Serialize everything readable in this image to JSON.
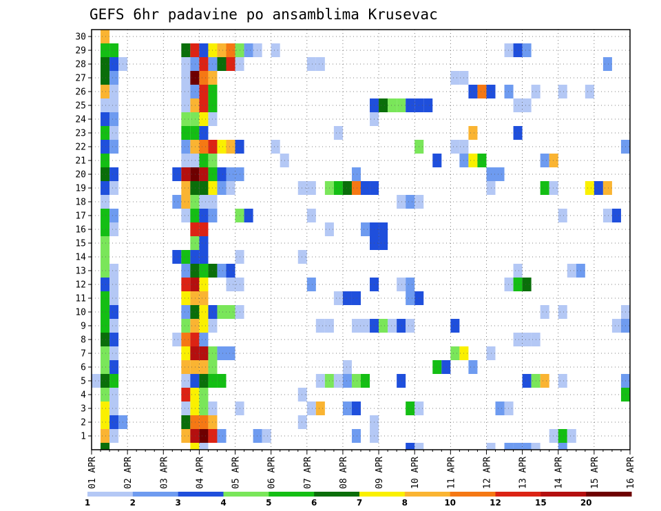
{
  "chart_data": {
    "type": "heatmap",
    "title": "GEFS 6hr padavine po ansamblima Krusevac",
    "xlabel": "",
    "ylabel": "",
    "x_tick_labels": [
      "01 APR",
      "02 APR",
      "03 APR",
      "04 APR",
      "05 APR",
      "06 APR",
      "07 APR",
      "08 APR",
      "09 APR",
      "10 APR",
      "11 APR",
      "12 APR",
      "13 APR",
      "14 APR",
      "15 APR",
      "16 APR"
    ],
    "x_steps_per_day": 4,
    "xlim": [
      0,
      60
    ],
    "y_tick_labels": [
      "1",
      "2",
      "3",
      "4",
      "5",
      "6",
      "7",
      "8",
      "9",
      "10",
      "11",
      "12",
      "13",
      "14",
      "15",
      "16",
      "17",
      "18",
      "19",
      "20",
      "21",
      "22",
      "23",
      "24",
      "25",
      "26",
      "27",
      "28",
      "29",
      "30"
    ],
    "ylim": [
      0,
      30
    ],
    "grid": true,
    "legend": {
      "placement": "bottom",
      "labels": [
        "1",
        "2",
        "3",
        "4",
        "5",
        "6",
        "7",
        "8",
        "10",
        "12",
        "15",
        "20"
      ],
      "colors": [
        "#b4c8f5",
        "#6e9bf0",
        "#1f4fdc",
        "#7ae65a",
        "#14be14",
        "#0a6e0a",
        "#faf000",
        "#fab432",
        "#f57814",
        "#dc2314",
        "#b40f0f",
        "#6e0000"
      ]
    },
    "levels": [
      1,
      2,
      3,
      4,
      5,
      6,
      7,
      8,
      10,
      12,
      15,
      20
    ],
    "colors": [
      "#b4c8f5",
      "#6e9bf0",
      "#1f4fdc",
      "#7ae65a",
      "#14be14",
      "#0a6e0a",
      "#faf000",
      "#fab432",
      "#f57814",
      "#dc2314",
      "#b40f0f",
      "#6e0000"
    ],
    "cells_note": "each cell: [member (row 0..29 = member 1..30, plus row 30 = member 0 at bottom), time step index from 01 APR 00Z in 6h steps, color class index 0-11]",
    "cells": [
      [
        29,
        1,
        7
      ],
      [
        28,
        1,
        4
      ],
      [
        28,
        2,
        4
      ],
      [
        28,
        10,
        5
      ],
      [
        28,
        11,
        9
      ],
      [
        28,
        12,
        2
      ],
      [
        28,
        13,
        6
      ],
      [
        28,
        14,
        7
      ],
      [
        28,
        15,
        8
      ],
      [
        28,
        16,
        3
      ],
      [
        28,
        17,
        1
      ],
      [
        28,
        18,
        0
      ],
      [
        28,
        20,
        0
      ],
      [
        28,
        46,
        0
      ],
      [
        28,
        47,
        2
      ],
      [
        28,
        48,
        1
      ],
      [
        27,
        1,
        5
      ],
      [
        27,
        2,
        2
      ],
      [
        27,
        3,
        0
      ],
      [
        27,
        10,
        0
      ],
      [
        27,
        11,
        1
      ],
      [
        27,
        12,
        9
      ],
      [
        27,
        13,
        1
      ],
      [
        27,
        14,
        5
      ],
      [
        27,
        15,
        9
      ],
      [
        27,
        16,
        0
      ],
      [
        27,
        24,
        0
      ],
      [
        27,
        25,
        0
      ],
      [
        27,
        57,
        1
      ],
      [
        26,
        1,
        5
      ],
      [
        26,
        2,
        1
      ],
      [
        26,
        10,
        0
      ],
      [
        26,
        11,
        11
      ],
      [
        26,
        12,
        8
      ],
      [
        26,
        13,
        7
      ],
      [
        26,
        40,
        0
      ],
      [
        26,
        41,
        0
      ],
      [
        25,
        1,
        7
      ],
      [
        25,
        2,
        0
      ],
      [
        25,
        10,
        0
      ],
      [
        25,
        11,
        1
      ],
      [
        25,
        12,
        9
      ],
      [
        25,
        13,
        4
      ],
      [
        25,
        42,
        2
      ],
      [
        25,
        43,
        8
      ],
      [
        25,
        44,
        2
      ],
      [
        25,
        46,
        1
      ],
      [
        25,
        49,
        0
      ],
      [
        25,
        52,
        0
      ],
      [
        25,
        55,
        0
      ],
      [
        24,
        1,
        0
      ],
      [
        24,
        2,
        0
      ],
      [
        24,
        10,
        0
      ],
      [
        24,
        11,
        7
      ],
      [
        24,
        12,
        9
      ],
      [
        24,
        13,
        4
      ],
      [
        24,
        31,
        2
      ],
      [
        24,
        32,
        5
      ],
      [
        24,
        33,
        3
      ],
      [
        24,
        34,
        3
      ],
      [
        24,
        35,
        2
      ],
      [
        24,
        36,
        2
      ],
      [
        24,
        37,
        2
      ],
      [
        24,
        47,
        0
      ],
      [
        24,
        48,
        0
      ],
      [
        23,
        1,
        2
      ],
      [
        23,
        2,
        1
      ],
      [
        23,
        10,
        3
      ],
      [
        23,
        11,
        3
      ],
      [
        23,
        12,
        6
      ],
      [
        23,
        13,
        0
      ],
      [
        23,
        31,
        0
      ],
      [
        22,
        1,
        4
      ],
      [
        22,
        2,
        0
      ],
      [
        22,
        10,
        4
      ],
      [
        22,
        11,
        4
      ],
      [
        22,
        12,
        2
      ],
      [
        22,
        27,
        0
      ],
      [
        22,
        42,
        7
      ],
      [
        22,
        47,
        2
      ],
      [
        21,
        1,
        2
      ],
      [
        21,
        2,
        1
      ],
      [
        21,
        10,
        1
      ],
      [
        21,
        11,
        7
      ],
      [
        21,
        12,
        8
      ],
      [
        21,
        13,
        9
      ],
      [
        21,
        14,
        6
      ],
      [
        21,
        15,
        7
      ],
      [
        21,
        16,
        2
      ],
      [
        21,
        20,
        0
      ],
      [
        21,
        36,
        3
      ],
      [
        21,
        40,
        0
      ],
      [
        21,
        41,
        0
      ],
      [
        21,
        59,
        1
      ],
      [
        20,
        1,
        4
      ],
      [
        20,
        10,
        0
      ],
      [
        20,
        11,
        0
      ],
      [
        20,
        12,
        4
      ],
      [
        20,
        13,
        3
      ],
      [
        20,
        21,
        0
      ],
      [
        20,
        38,
        2
      ],
      [
        20,
        41,
        1
      ],
      [
        20,
        42,
        6
      ],
      [
        20,
        43,
        4
      ],
      [
        20,
        50,
        1
      ],
      [
        20,
        51,
        7
      ],
      [
        19,
        1,
        5
      ],
      [
        19,
        2,
        2
      ],
      [
        19,
        9,
        2
      ],
      [
        19,
        10,
        10
      ],
      [
        19,
        11,
        11
      ],
      [
        19,
        12,
        10
      ],
      [
        19,
        13,
        4
      ],
      [
        19,
        14,
        2
      ],
      [
        19,
        15,
        1
      ],
      [
        19,
        16,
        1
      ],
      [
        19,
        29,
        1
      ],
      [
        19,
        44,
        1
      ],
      [
        19,
        45,
        1
      ],
      [
        18,
        1,
        2
      ],
      [
        18,
        2,
        0
      ],
      [
        18,
        10,
        7
      ],
      [
        18,
        11,
        5
      ],
      [
        18,
        12,
        5
      ],
      [
        18,
        13,
        6
      ],
      [
        18,
        14,
        1
      ],
      [
        18,
        15,
        0
      ],
      [
        18,
        23,
        0
      ],
      [
        18,
        24,
        0
      ],
      [
        18,
        26,
        3
      ],
      [
        18,
        27,
        4
      ],
      [
        18,
        28,
        5
      ],
      [
        18,
        29,
        8
      ],
      [
        18,
        30,
        2
      ],
      [
        18,
        31,
        2
      ],
      [
        18,
        44,
        0
      ],
      [
        18,
        50,
        4
      ],
      [
        18,
        51,
        0
      ],
      [
        18,
        55,
        6
      ],
      [
        18,
        56,
        2
      ],
      [
        18,
        57,
        7
      ],
      [
        17,
        1,
        0
      ],
      [
        17,
        9,
        1
      ],
      [
        17,
        10,
        7
      ],
      [
        17,
        11,
        3
      ],
      [
        17,
        12,
        0
      ],
      [
        17,
        13,
        0
      ],
      [
        17,
        34,
        0
      ],
      [
        17,
        35,
        1
      ],
      [
        17,
        36,
        0
      ],
      [
        16,
        1,
        4
      ],
      [
        16,
        2,
        1
      ],
      [
        16,
        10,
        0
      ],
      [
        16,
        11,
        4
      ],
      [
        16,
        12,
        2
      ],
      [
        16,
        13,
        1
      ],
      [
        16,
        16,
        3
      ],
      [
        16,
        17,
        2
      ],
      [
        16,
        24,
        0
      ],
      [
        16,
        52,
        0
      ],
      [
        16,
        57,
        0
      ],
      [
        16,
        58,
        2
      ],
      [
        15,
        1,
        4
      ],
      [
        15,
        2,
        0
      ],
      [
        15,
        11,
        9
      ],
      [
        15,
        12,
        9
      ],
      [
        15,
        26,
        0
      ],
      [
        15,
        30,
        1
      ],
      [
        15,
        31,
        2
      ],
      [
        15,
        32,
        2
      ],
      [
        14,
        1,
        3
      ],
      [
        14,
        11,
        3
      ],
      [
        14,
        12,
        2
      ],
      [
        14,
        31,
        2
      ],
      [
        14,
        32,
        2
      ],
      [
        13,
        1,
        3
      ],
      [
        13,
        9,
        2
      ],
      [
        13,
        10,
        4
      ],
      [
        13,
        11,
        2
      ],
      [
        13,
        12,
        2
      ],
      [
        13,
        16,
        0
      ],
      [
        13,
        23,
        0
      ],
      [
        12,
        1,
        3
      ],
      [
        12,
        2,
        0
      ],
      [
        12,
        10,
        1
      ],
      [
        12,
        11,
        5
      ],
      [
        12,
        12,
        4
      ],
      [
        12,
        13,
        5
      ],
      [
        12,
        14,
        1
      ],
      [
        12,
        15,
        2
      ],
      [
        12,
        47,
        0
      ],
      [
        12,
        53,
        0
      ],
      [
        12,
        54,
        1
      ],
      [
        11,
        1,
        2
      ],
      [
        11,
        2,
        0
      ],
      [
        11,
        10,
        9
      ],
      [
        11,
        11,
        10
      ],
      [
        11,
        12,
        6
      ],
      [
        11,
        15,
        0
      ],
      [
        11,
        16,
        0
      ],
      [
        11,
        24,
        1
      ],
      [
        11,
        31,
        2
      ],
      [
        11,
        34,
        0
      ],
      [
        11,
        35,
        1
      ],
      [
        11,
        46,
        0
      ],
      [
        11,
        47,
        4
      ],
      [
        11,
        48,
        5
      ],
      [
        10,
        1,
        4
      ],
      [
        10,
        2,
        0
      ],
      [
        10,
        10,
        6
      ],
      [
        10,
        11,
        7
      ],
      [
        10,
        12,
        7
      ],
      [
        10,
        27,
        0
      ],
      [
        10,
        28,
        2
      ],
      [
        10,
        29,
        2
      ],
      [
        10,
        35,
        1
      ],
      [
        10,
        36,
        2
      ],
      [
        9,
        1,
        4
      ],
      [
        9,
        2,
        2
      ],
      [
        9,
        10,
        1
      ],
      [
        9,
        11,
        5
      ],
      [
        9,
        12,
        6
      ],
      [
        9,
        13,
        2
      ],
      [
        9,
        14,
        3
      ],
      [
        9,
        15,
        3
      ],
      [
        9,
        16,
        0
      ],
      [
        9,
        50,
        0
      ],
      [
        9,
        52,
        0
      ],
      [
        9,
        59,
        0
      ],
      [
        8,
        1,
        4
      ],
      [
        8,
        2,
        0
      ],
      [
        8,
        10,
        3
      ],
      [
        8,
        11,
        7
      ],
      [
        8,
        12,
        6
      ],
      [
        8,
        13,
        0
      ],
      [
        8,
        25,
        0
      ],
      [
        8,
        26,
        0
      ],
      [
        8,
        29,
        0
      ],
      [
        8,
        30,
        0
      ],
      [
        8,
        31,
        2
      ],
      [
        8,
        32,
        3
      ],
      [
        8,
        33,
        0
      ],
      [
        8,
        34,
        2
      ],
      [
        8,
        35,
        0
      ],
      [
        8,
        40,
        2
      ],
      [
        8,
        58,
        0
      ],
      [
        8,
        59,
        1
      ],
      [
        7,
        1,
        5
      ],
      [
        7,
        2,
        2
      ],
      [
        7,
        9,
        0
      ],
      [
        7,
        10,
        8
      ],
      [
        7,
        11,
        9
      ],
      [
        7,
        12,
        1
      ],
      [
        7,
        47,
        0
      ],
      [
        7,
        48,
        0
      ],
      [
        7,
        49,
        0
      ],
      [
        6,
        1,
        3
      ],
      [
        6,
        2,
        0
      ],
      [
        6,
        10,
        6
      ],
      [
        6,
        11,
        10
      ],
      [
        6,
        12,
        10
      ],
      [
        6,
        13,
        3
      ],
      [
        6,
        14,
        1
      ],
      [
        6,
        15,
        1
      ],
      [
        6,
        40,
        3
      ],
      [
        6,
        41,
        6
      ],
      [
        6,
        44,
        0
      ],
      [
        5,
        1,
        3
      ],
      [
        5,
        2,
        2
      ],
      [
        5,
        10,
        7
      ],
      [
        5,
        11,
        7
      ],
      [
        5,
        12,
        7
      ],
      [
        5,
        13,
        3
      ],
      [
        5,
        28,
        0
      ],
      [
        5,
        38,
        4
      ],
      [
        5,
        39,
        2
      ],
      [
        5,
        42,
        1
      ],
      [
        4,
        0,
        0
      ],
      [
        4,
        1,
        5
      ],
      [
        4,
        2,
        4
      ],
      [
        4,
        10,
        0
      ],
      [
        4,
        11,
        2
      ],
      [
        4,
        12,
        5
      ],
      [
        4,
        13,
        4
      ],
      [
        4,
        14,
        4
      ],
      [
        4,
        25,
        0
      ],
      [
        4,
        26,
        3
      ],
      [
        4,
        27,
        0
      ],
      [
        4,
        28,
        1
      ],
      [
        4,
        29,
        3
      ],
      [
        4,
        30,
        4
      ],
      [
        4,
        34,
        2
      ],
      [
        4,
        48,
        2
      ],
      [
        4,
        49,
        3
      ],
      [
        4,
        50,
        7
      ],
      [
        4,
        52,
        0
      ],
      [
        4,
        59,
        1
      ],
      [
        3,
        1,
        3
      ],
      [
        3,
        2,
        0
      ],
      [
        3,
        10,
        9
      ],
      [
        3,
        11,
        6
      ],
      [
        3,
        12,
        3
      ],
      [
        3,
        23,
        0
      ],
      [
        3,
        59,
        4
      ],
      [
        2,
        1,
        6
      ],
      [
        2,
        2,
        0
      ],
      [
        2,
        10,
        0
      ],
      [
        2,
        11,
        6
      ],
      [
        2,
        12,
        3
      ],
      [
        2,
        13,
        0
      ],
      [
        2,
        16,
        0
      ],
      [
        2,
        24,
        0
      ],
      [
        2,
        25,
        7
      ],
      [
        2,
        28,
        1
      ],
      [
        2,
        29,
        2
      ],
      [
        2,
        35,
        4
      ],
      [
        2,
        36,
        0
      ],
      [
        2,
        45,
        1
      ],
      [
        2,
        46,
        0
      ],
      [
        1,
        1,
        6
      ],
      [
        1,
        2,
        2
      ],
      [
        1,
        3,
        1
      ],
      [
        1,
        10,
        5
      ],
      [
        1,
        11,
        8
      ],
      [
        1,
        12,
        8
      ],
      [
        1,
        13,
        7
      ],
      [
        1,
        23,
        0
      ],
      [
        1,
        31,
        0
      ],
      [
        0,
        1,
        7
      ],
      [
        0,
        2,
        0
      ],
      [
        0,
        10,
        7
      ],
      [
        0,
        11,
        10
      ],
      [
        0,
        12,
        11
      ],
      [
        0,
        13,
        9
      ],
      [
        0,
        14,
        1
      ],
      [
        0,
        18,
        1
      ],
      [
        0,
        19,
        0
      ],
      [
        0,
        29,
        1
      ],
      [
        0,
        31,
        0
      ],
      [
        0,
        51,
        0
      ],
      [
        0,
        52,
        4
      ],
      [
        0,
        53,
        0
      ]
    ],
    "bottom_row_cells": [
      [
        1,
        5
      ],
      [
        11,
        6
      ],
      [
        12,
        0
      ],
      [
        35,
        2
      ],
      [
        36,
        0
      ],
      [
        44,
        0
      ],
      [
        46,
        1
      ],
      [
        47,
        1
      ],
      [
        48,
        1
      ],
      [
        49,
        0
      ],
      [
        52,
        1
      ]
    ]
  }
}
